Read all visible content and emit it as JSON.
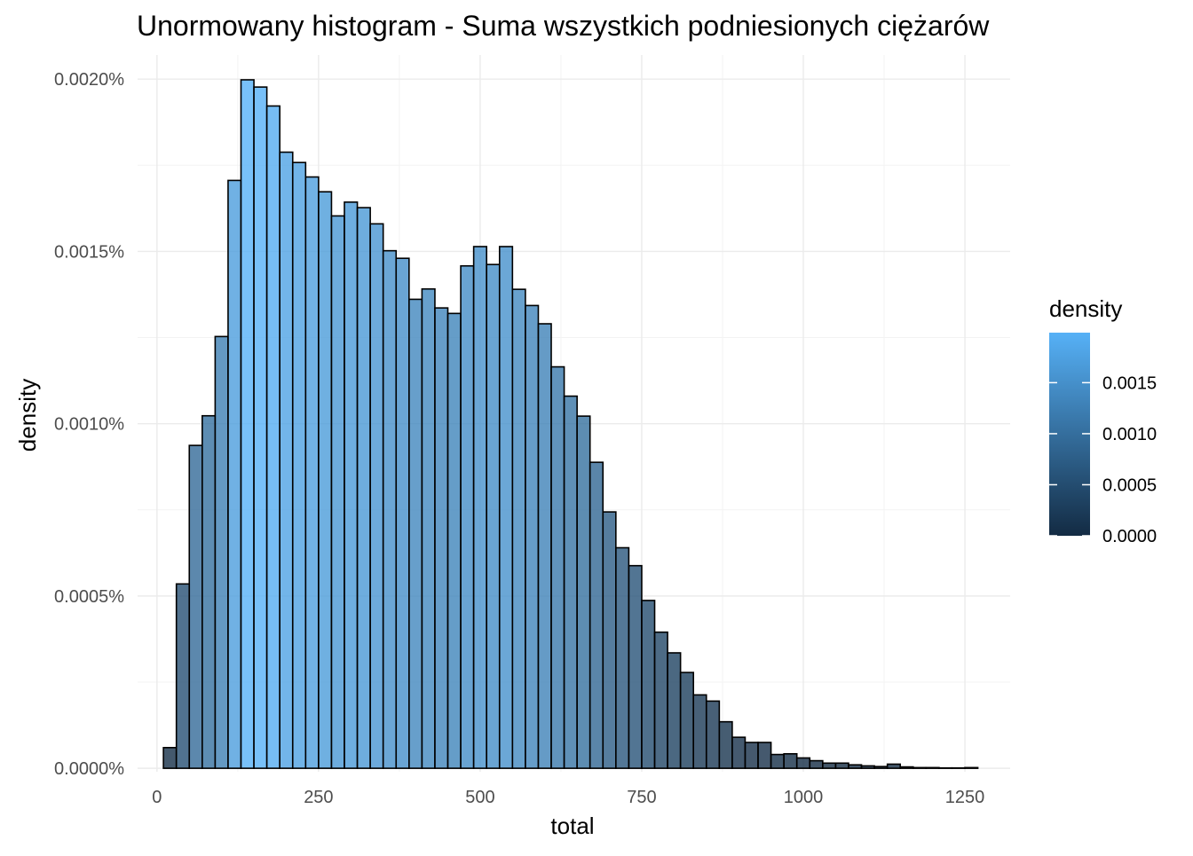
{
  "chart_data": {
    "type": "bar",
    "title": "Unormowany histogram - Suma wszystkich podniesionych ciężarów",
    "xlabel": "total",
    "ylabel": "density",
    "xlim": [
      -30,
      1320
    ],
    "ylim": [
      -1e-07,
      2.07e-05
    ],
    "x_ticks": [
      0,
      250,
      500,
      750,
      1000,
      1250
    ],
    "x_tick_labels": [
      "0",
      "250",
      "500",
      "750",
      "1000",
      "1250"
    ],
    "y_ticks": [
      0,
      5e-06,
      1e-05,
      1.5e-05,
      2e-05
    ],
    "y_tick_labels": [
      "0.0000%",
      "0.0005%",
      "0.0010%",
      "0.0015%",
      "0.0020%"
    ],
    "grid": true,
    "bin_width": 20,
    "bin_start": 10,
    "values": [
      6e-07,
      5.35e-06,
      9.37e-06,
      1.023e-05,
      1.253e-05,
      1.706e-05,
      1.998e-05,
      1.977e-05,
      1.922e-05,
      1.788e-05,
      1.758e-05,
      1.716e-05,
      1.673e-05,
      1.603e-05,
      1.643e-05,
      1.627e-05,
      1.58e-05,
      1.502e-05,
      1.48e-05,
      1.361e-05,
      1.391e-05,
      1.336e-05,
      1.32e-05,
      1.458e-05,
      1.514e-05,
      1.462e-05,
      1.514e-05,
      1.39e-05,
      1.343e-05,
      1.29e-05,
      1.165e-05,
      1.08e-05,
      1.022e-05,
      8.88e-06,
      7.44e-06,
      6.4e-06,
      5.88e-06,
      4.87e-06,
      3.95e-06,
      3.35e-06,
      2.78e-06,
      2.13e-06,
      1.95e-06,
      1.35e-06,
      9e-07,
      7.5e-07,
      7.5e-07,
      4e-07,
      4.2e-07,
      3e-07,
      2.2e-07,
      1.5e-07,
      1.5e-07,
      1e-07,
      7e-08,
      5e-08,
      1.2e-07,
      4e-08,
      2e-08,
      2e-08,
      1e-08,
      1e-08,
      2e-08
    ],
    "legend": {
      "title": "density",
      "position": "right",
      "labels": [
        "0.0015",
        "0.0010",
        "0.0005",
        "0.0000"
      ],
      "label_values": [
        0.0015,
        0.001,
        0.0005,
        0.0
      ],
      "range": [
        0.0,
        0.00199
      ],
      "color_low": "#132b43",
      "color_high": "#56b1f7"
    },
    "bar_outline_color": "#000000",
    "bar_opacity": 0.8
  }
}
